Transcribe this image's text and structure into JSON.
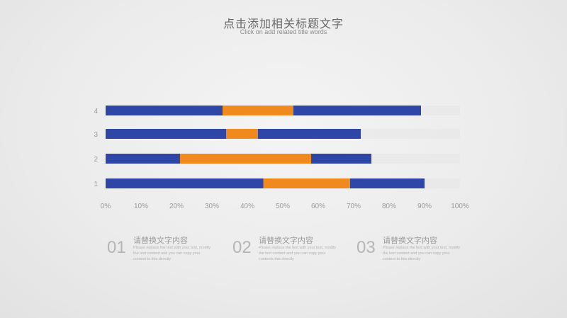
{
  "header": {
    "title": "点击添加相关标题文字",
    "subtitle": "Click on add related title words"
  },
  "colors": {
    "blue": "#2e47a6",
    "orange": "#f0891e",
    "ghost": "#e6e6e6",
    "axis_text": "#9a9a9a"
  },
  "chart_data": {
    "type": "bar",
    "orientation": "horizontal",
    "stacked": true,
    "categories": [
      "1",
      "2",
      "3",
      "4"
    ],
    "series": [
      {
        "color": "#2e47a6",
        "values": [
          44.5,
          21,
          34,
          33
        ]
      },
      {
        "color": "#f0891e",
        "values": [
          24.5,
          37,
          9,
          20
        ]
      },
      {
        "color": "#2e47a6",
        "values": [
          21,
          17,
          29,
          36
        ]
      }
    ],
    "xlim": [
      0,
      100
    ],
    "xticks": [
      "0%",
      "10%",
      "20%",
      "30%",
      "40%",
      "50%",
      "60%",
      "70%",
      "80%",
      "90%",
      "100%"
    ],
    "grid": false,
    "legend": "none"
  },
  "features": [
    {
      "number": "01",
      "heading": "请替换文字内容",
      "body": "Please replace the text with your text, modify the text content and you can copy your content to this directly"
    },
    {
      "number": "02",
      "heading": "请替换文字内容",
      "body": "Please replace the text with your text, modify the text content and you can copy your contents this directly"
    },
    {
      "number": "03",
      "heading": "请替换文字内容",
      "body": "Please replace the text with your text, modify the text content and you can copy your content to this directly"
    }
  ]
}
